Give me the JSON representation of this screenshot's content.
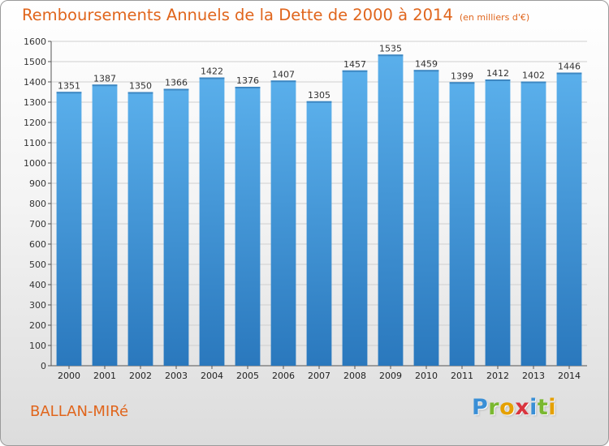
{
  "title": "Remboursements Annuels de la Dette de 2000 à 2014",
  "subtitle": "(en milliers d'€)",
  "place": "BALLAN-MIRé",
  "logo": {
    "letters": [
      {
        "ch": "P",
        "color": "#3a8fd6"
      },
      {
        "ch": "r",
        "color": "#7ab830"
      },
      {
        "ch": "o",
        "color": "#e5a000"
      },
      {
        "ch": "x",
        "color": "#d9343e"
      },
      {
        "ch": "i",
        "color": "#3a8fd6"
      },
      {
        "ch": "t",
        "color": "#7ab830"
      },
      {
        "ch": "i",
        "color": "#e5a000"
      }
    ]
  },
  "colors": {
    "bar_top": "#5aafeb",
    "bar_bottom": "#2a78bd",
    "title": "#e0651c"
  },
  "chart_data": {
    "type": "bar",
    "title": "Remboursements Annuels de la Dette de 2000 à 2014",
    "subtitle": "(en milliers d'€)",
    "categories": [
      "2000",
      "2001",
      "2002",
      "2003",
      "2004",
      "2005",
      "2006",
      "2007",
      "2008",
      "2009",
      "2010",
      "2011",
      "2012",
      "2013",
      "2014"
    ],
    "values": [
      1351,
      1387,
      1350,
      1366,
      1422,
      1376,
      1407,
      1305,
      1457,
      1535,
      1459,
      1399,
      1412,
      1402,
      1446
    ],
    "ylim": [
      0,
      1600
    ],
    "yticks": [
      0,
      100,
      200,
      300,
      400,
      500,
      600,
      700,
      800,
      900,
      1000,
      1100,
      1200,
      1300,
      1400,
      1500,
      1600
    ],
    "grid": true
  }
}
